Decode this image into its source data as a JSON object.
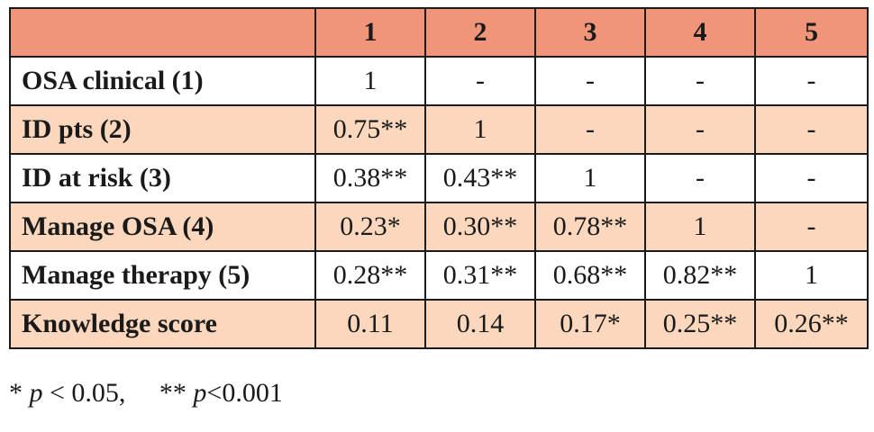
{
  "table": {
    "header": [
      "",
      "1",
      "2",
      "3",
      "4",
      "5"
    ],
    "rows": [
      {
        "label": "OSA clinical (1)",
        "values": [
          "1",
          "-",
          "-",
          "-",
          "-"
        ]
      },
      {
        "label": "ID pts (2)",
        "values": [
          "0.75**",
          "1",
          "-",
          "-",
          "-"
        ]
      },
      {
        "label": "ID at risk (3)",
        "values": [
          "0.38**",
          "0.43**",
          "1",
          "-",
          "-"
        ]
      },
      {
        "label": "Manage OSA (4)",
        "values": [
          "0.23*",
          "0.30**",
          "0.78**",
          "1",
          "-"
        ]
      },
      {
        "label": "Manage therapy (5)",
        "values": [
          "0.28**",
          "0.31**",
          "0.68**",
          "0.82**",
          "1"
        ]
      },
      {
        "label": "Knowledge score",
        "values": [
          "0.11",
          "0.14",
          "0.17*",
          "0.25**",
          "0.26**"
        ]
      }
    ],
    "colors": {
      "header": "#f0957a",
      "band": "#fbd8bd",
      "plain": "#ffffff",
      "border": "#1a1a1a"
    }
  },
  "footnote": {
    "star1": "* ",
    "p1": "p",
    "cond1": " < 0.05,     ",
    "star2": "** ",
    "p2": "p",
    "cond2": "<0.001"
  }
}
